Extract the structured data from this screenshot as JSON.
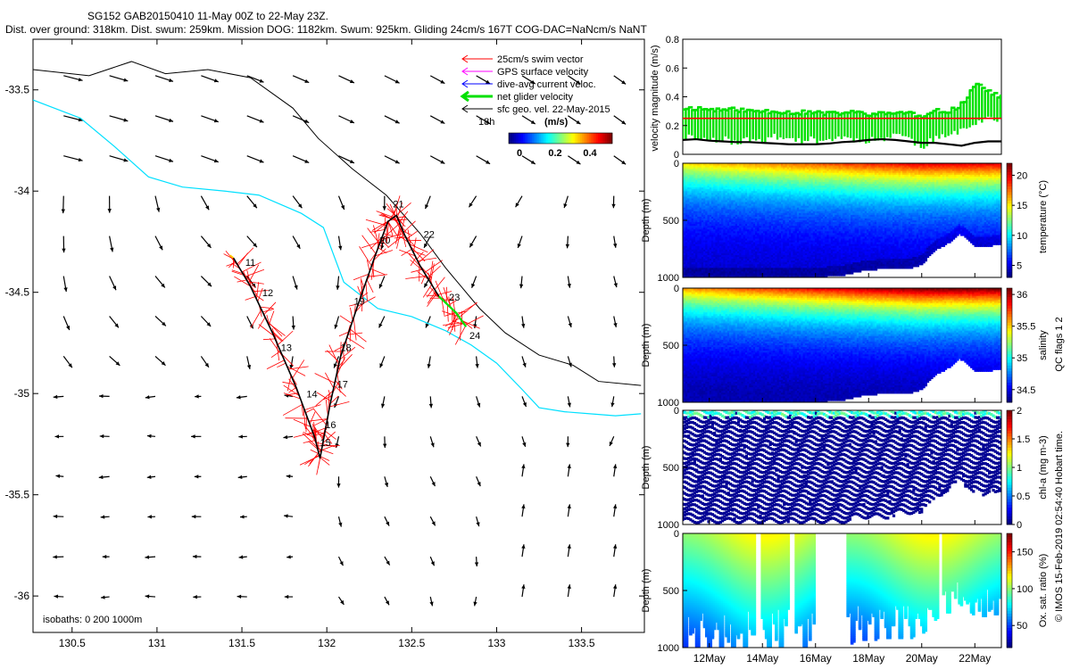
{
  "header": {
    "line1": "SG152 GAB20150410 11-May 00Z to 22-May 23Z.",
    "line2": "Dist. over ground: 318km. Dist. swum: 259km. Mission DOG: 1182km. Swum: 925km. Gliding 24cm/s 167T COG-DAC=NaNcm/s NaNT"
  },
  "colors": {
    "swim": "#ff0000",
    "gps": "#ff00ff",
    "dac": "#0000ff",
    "net": "#00e000",
    "geo": "#000000",
    "isobath0": "#000000",
    "isobath200": "#00e0ff",
    "bg": "#ffffff"
  },
  "chart_data": [
    {
      "id": "map",
      "type": "scatter",
      "title": "",
      "xlabel": "",
      "ylabel": "",
      "xlim": [
        130.27,
        133.87
      ],
      "ylim": [
        -36.18,
        -33.25
      ],
      "xticks": [
        130.5,
        131,
        131.5,
        132,
        132.5,
        133,
        133.5
      ],
      "xtick_labels": [
        "130.5",
        "131",
        "131.5",
        "132",
        "132.5",
        "133",
        "133.5"
      ],
      "yticks": [
        -33.5,
        -34,
        -34.5,
        -35,
        -35.5,
        -36
      ],
      "ytick_labels": [
        "-33.5",
        "-34",
        "-34.5",
        "-35",
        "-35.5",
        "-36"
      ],
      "legend": {
        "placement": "top-right",
        "entries": [
          "25cm/s swim vector",
          "GPS surface velocity",
          "dive-avg current veloc.",
          "net glider velocity",
          "sfc geo. vel. 22-May-2015"
        ],
        "time_label": "18h",
        "unit_label": "(m/s)",
        "colorbar_ticks": [
          "0",
          "0.2",
          "0.4"
        ]
      },
      "isobath_label": "isobaths: 0   200   1000m",
      "day_labels": [
        {
          "label": "11",
          "x": 131.52,
          "y": -34.37
        },
        {
          "label": "12",
          "x": 131.62,
          "y": -34.52
        },
        {
          "label": "13",
          "x": 131.73,
          "y": -34.79
        },
        {
          "label": "14",
          "x": 131.88,
          "y": -35.02
        },
        {
          "label": "15",
          "x": 131.96,
          "y": -35.26
        },
        {
          "label": "16",
          "x": 131.99,
          "y": -35.17
        },
        {
          "label": "17",
          "x": 132.06,
          "y": -34.97
        },
        {
          "label": "18",
          "x": 132.08,
          "y": -34.79
        },
        {
          "label": "19",
          "x": 132.16,
          "y": -34.56
        },
        {
          "label": "20",
          "x": 132.31,
          "y": -34.26
        },
        {
          "label": "21",
          "x": 132.39,
          "y": -34.08
        },
        {
          "label": "22",
          "x": 132.57,
          "y": -34.23
        },
        {
          "label": "23",
          "x": 132.72,
          "y": -34.54
        },
        {
          "label": "24",
          "x": 132.84,
          "y": -34.73
        }
      ],
      "track": {
        "name": "glider track",
        "x": [
          131.45,
          131.55,
          131.68,
          131.82,
          131.93,
          131.96,
          132.02,
          132.08,
          132.18,
          132.28,
          132.36,
          132.41,
          132.46,
          132.55,
          132.66,
          132.76,
          132.82
        ],
        "y": [
          -34.33,
          -34.47,
          -34.7,
          -34.97,
          -35.22,
          -35.32,
          -35.05,
          -34.82,
          -34.57,
          -34.33,
          -34.15,
          -34.12,
          -34.22,
          -34.37,
          -34.52,
          -34.6,
          -34.67
        ]
      },
      "isobath_0": {
        "x": [
          130.27,
          130.6,
          130.85,
          131.05,
          131.3,
          131.55,
          131.8,
          131.95,
          132.15,
          132.35,
          132.55,
          132.7,
          132.9,
          133.05,
          133.25,
          133.45,
          133.6,
          133.85
        ],
        "y": [
          -33.4,
          -33.43,
          -33.36,
          -33.42,
          -33.4,
          -33.44,
          -33.59,
          -33.74,
          -33.89,
          -34.02,
          -34.21,
          -34.38,
          -34.58,
          -34.7,
          -34.81,
          -34.86,
          -34.94,
          -34.96
        ]
      },
      "isobath_200": {
        "x": [
          130.27,
          130.55,
          130.75,
          130.95,
          131.15,
          131.4,
          131.6,
          131.85,
          131.98,
          132.1,
          132.3,
          132.5,
          132.7,
          132.85,
          133.0,
          133.15,
          133.25,
          133.4,
          133.55,
          133.7,
          133.85
        ],
        "y": [
          -33.55,
          -33.64,
          -33.78,
          -33.93,
          -33.98,
          -34.0,
          -34.02,
          -34.11,
          -34.18,
          -34.45,
          -34.58,
          -34.62,
          -34.69,
          -34.76,
          -34.85,
          -34.98,
          -35.07,
          -35.09,
          -35.1,
          -35.11,
          -35.1
        ]
      },
      "geo_arrow_grid": {
        "x_start": 130.45,
        "x_step": 0.27,
        "nx": 13,
        "y_start": -33.43,
        "y_step": -0.198,
        "ny": 14
      }
    },
    {
      "id": "velocity",
      "type": "line",
      "xlabel": "",
      "ylabel": "velocity magnitude (m/s)",
      "xlim": [
        11.0,
        23.0
      ],
      "ylim": [
        0,
        0.8
      ],
      "yticks": [
        0,
        0.2,
        0.4,
        0.6,
        0.8
      ],
      "ytick_labels": [
        "0",
        "0.2",
        "0.4",
        "0.6",
        "0.8"
      ],
      "reference_line": 0.25,
      "series": [
        {
          "name": "swim speed range (green)",
          "x": [
            11.0,
            11.5,
            12.0,
            12.5,
            13.0,
            13.5,
            14.0,
            14.5,
            15.0,
            15.5,
            16.0,
            16.5,
            17.0,
            17.5,
            18.0,
            18.5,
            19.0,
            19.5,
            20.0,
            20.5,
            21.0,
            21.5,
            22.0,
            22.5,
            23.0
          ],
          "high": [
            0.32,
            0.32,
            0.31,
            0.31,
            0.31,
            0.3,
            0.3,
            0.3,
            0.29,
            0.29,
            0.29,
            0.28,
            0.29,
            0.29,
            0.28,
            0.28,
            0.29,
            0.29,
            0.25,
            0.3,
            0.3,
            0.35,
            0.5,
            0.43,
            0.4
          ],
          "low": [
            0.12,
            0.12,
            0.1,
            0.11,
            0.08,
            0.1,
            0.1,
            0.12,
            0.11,
            0.1,
            0.1,
            0.1,
            0.12,
            0.1,
            0.1,
            0.1,
            0.15,
            0.11,
            0.05,
            0.11,
            0.12,
            0.18,
            0.22,
            0.25,
            0.25
          ]
        },
        {
          "name": "net glider speed (black)",
          "x": [
            11.0,
            11.5,
            12.0,
            12.5,
            13.0,
            13.5,
            14.0,
            14.5,
            15.0,
            15.5,
            16.0,
            16.5,
            17.0,
            17.5,
            18.0,
            18.5,
            19.0,
            19.5,
            20.0,
            20.5,
            21.0,
            21.5,
            22.0,
            22.5,
            23.0
          ],
          "values": [
            0.1,
            0.105,
            0.095,
            0.09,
            0.085,
            0.085,
            0.08,
            0.075,
            0.07,
            0.07,
            0.07,
            0.075,
            0.085,
            0.09,
            0.1,
            0.105,
            0.1,
            0.09,
            0.08,
            0.08,
            0.07,
            0.06,
            0.08,
            0.09,
            0.09
          ]
        }
      ]
    },
    {
      "id": "temperature",
      "type": "heatmap",
      "ylabel": "Depth (m)",
      "colorbar_label": "temperature (°C)",
      "ylim": [
        1000,
        0
      ],
      "yticks": [
        0,
        500,
        1000
      ],
      "xlim": [
        11.0,
        23.0
      ],
      "clim": [
        3,
        22
      ],
      "colorbar_ticks": [
        5,
        10,
        15,
        20
      ],
      "max_depth": {
        "x": [
          11.0,
          14.0,
          16.0,
          17.0,
          18.0,
          19.5,
          20.0,
          20.5,
          21.0,
          21.4,
          21.6,
          22.0,
          22.5,
          23.0
        ],
        "y": [
          1000,
          1000,
          1000,
          980,
          930,
          920,
          890,
          760,
          700,
          620,
          640,
          720,
          730,
          700
        ]
      }
    },
    {
      "id": "salinity",
      "type": "heatmap",
      "ylabel": "Depth (m)",
      "colorbar_label": "salinity",
      "ylim": [
        1000,
        0
      ],
      "yticks": [
        0,
        500,
        1000
      ],
      "xlim": [
        11.0,
        23.0
      ],
      "clim": [
        34.3,
        36.1
      ],
      "colorbar_ticks": [
        34.5,
        35,
        35.5,
        36
      ],
      "max_depth": {
        "x": [
          11.0,
          14.0,
          16.0,
          17.0,
          18.0,
          19.5,
          20.0,
          20.5,
          21.0,
          21.4,
          21.6,
          22.0,
          22.5,
          23.0
        ],
        "y": [
          1000,
          1000,
          1000,
          980,
          930,
          920,
          890,
          760,
          700,
          620,
          640,
          720,
          730,
          700
        ]
      }
    },
    {
      "id": "chla",
      "type": "heatmap",
      "ylabel": "Depth (m)",
      "colorbar_label": "chl-a (mg m-3)",
      "ylim": [
        1000,
        0
      ],
      "yticks": [
        0,
        500,
        1000
      ],
      "xlim": [
        11.0,
        23.0
      ],
      "clim": [
        0,
        2
      ],
      "colorbar_ticks": [
        0,
        0.5,
        1,
        1.5,
        2
      ],
      "max_depth": {
        "x": [
          11.0,
          14.0,
          16.0,
          17.0,
          18.0,
          19.5,
          20.0,
          20.5,
          21.0,
          21.4,
          21.6,
          22.0,
          22.5,
          23.0
        ],
        "y": [
          1000,
          1000,
          1000,
          980,
          930,
          920,
          890,
          760,
          700,
          620,
          640,
          720,
          730,
          700
        ]
      }
    },
    {
      "id": "oxygen",
      "type": "heatmap",
      "ylabel": "Depth (m)",
      "colorbar_label": "Ox. sat. ratio (%)",
      "ylim": [
        1000,
        0
      ],
      "yticks": [
        0,
        500,
        1000
      ],
      "xlim": [
        11.0,
        23.0
      ],
      "clim": [
        20,
        175
      ],
      "colorbar_ticks": [
        50,
        100,
        150
      ],
      "xticks": [
        12,
        14,
        16,
        18,
        20,
        22
      ],
      "xtick_labels": [
        "12May",
        "14May",
        "16May",
        "18May",
        "20May",
        "22May"
      ],
      "max_depth": {
        "x": [
          11.0,
          14.0,
          16.0,
          17.0,
          18.0,
          19.5,
          20.0,
          20.5,
          21.0,
          21.4,
          21.6,
          22.0,
          22.5,
          23.0
        ],
        "y": [
          1000,
          1000,
          1000,
          980,
          930,
          920,
          890,
          760,
          700,
          620,
          640,
          720,
          730,
          700
        ]
      }
    }
  ],
  "side_label": "QC flags 1  2",
  "copyright": "© IMOS 15-Feb-2019 02:54:40 Hobart time."
}
